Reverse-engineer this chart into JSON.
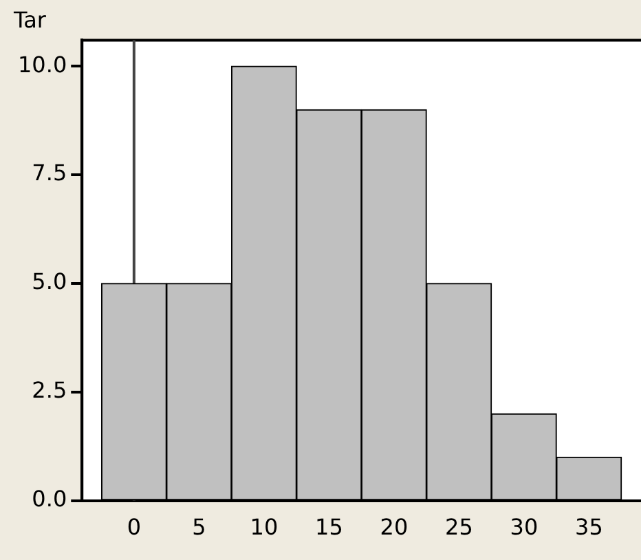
{
  "chart_data": {
    "type": "histogram",
    "title": "Tar",
    "bins": [
      -2.5,
      2.5,
      7.5,
      12.5,
      17.5,
      22.5,
      27.5,
      32.5,
      37.5
    ],
    "values": [
      5,
      5,
      10,
      9,
      9,
      5,
      2,
      1
    ],
    "color": "#c0c0c0",
    "xlim": [
      -4,
      39
    ],
    "xticks": [
      0,
      5,
      10,
      15,
      20,
      25,
      30,
      35
    ],
    "ylim": [
      0,
      10.6
    ],
    "yticks": [
      {
        "value": 0,
        "label": "0.0"
      },
      {
        "value": 2.5,
        "label": "2.5"
      },
      {
        "value": 5,
        "label": "5.0"
      },
      {
        "value": 7.5,
        "label": "7.5"
      },
      {
        "value": 10,
        "label": "10.0"
      }
    ],
    "ref_lines": [
      {
        "axis": "x",
        "value": 0,
        "color": "#444444"
      }
    ],
    "grid": false,
    "legend": false
  }
}
